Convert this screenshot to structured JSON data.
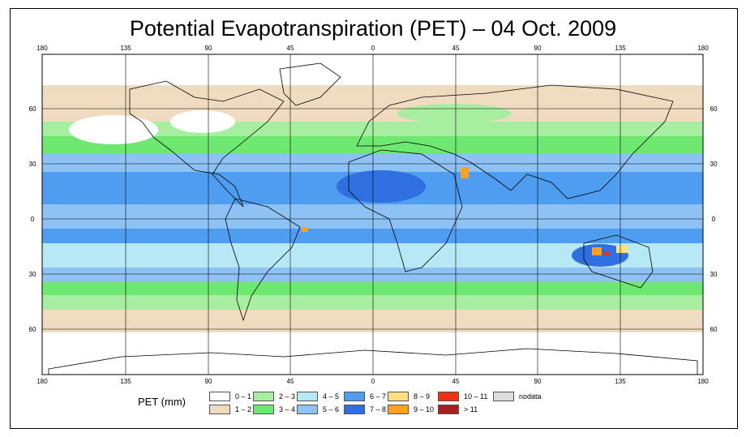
{
  "title": "Potential Evapotranspiration (PET) – 04 Oct. 2009",
  "axes": {
    "top_lon_labels": [
      "180",
      "135",
      "90",
      "45",
      "0",
      "45",
      "90",
      "135",
      "180"
    ],
    "bottom_lon_labels": [
      "180",
      "135",
      "90",
      "45",
      "0",
      "45",
      "90",
      "135",
      "180"
    ],
    "left_lat_labels": [
      "60",
      "30",
      "0",
      "30",
      "60"
    ],
    "right_lat_labels": [
      "60",
      "30",
      "0",
      "30",
      "60"
    ]
  },
  "legend": {
    "title": "PET (mm)",
    "classes": [
      {
        "label": "0 – 1",
        "color": "#ffffff"
      },
      {
        "label": "1 – 2",
        "color": "#efdcc0"
      },
      {
        "label": "2 – 3",
        "color": "#a8eea0"
      },
      {
        "label": "3 – 4",
        "color": "#6ee870"
      },
      {
        "label": "4 – 5",
        "color": "#b6e8f5"
      },
      {
        "label": "5 – 6",
        "color": "#8ec2f5"
      },
      {
        "label": "6 – 7",
        "color": "#4f9df0"
      },
      {
        "label": "7 – 8",
        "color": "#2f6fe0"
      },
      {
        "label": "8 – 9",
        "color": "#ffe080"
      },
      {
        "label": "9 – 10",
        "color": "#ffa020"
      },
      {
        "label": "10 – 11",
        "color": "#f03010"
      },
      {
        "label": "> 11",
        "color": "#a82020"
      },
      {
        "label": "nodata",
        "color": "#dcdcdc"
      }
    ]
  }
}
